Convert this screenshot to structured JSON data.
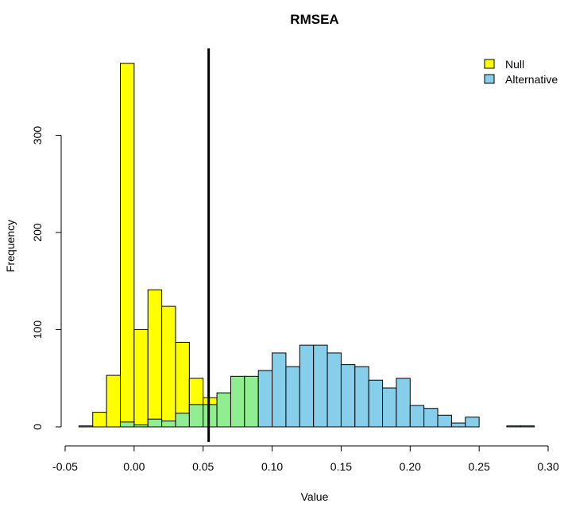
{
  "chart_data": {
    "type": "bar",
    "title": "RMSEA",
    "xlabel": "Value",
    "ylabel": "Frequency",
    "xlim": [
      -0.05,
      0.3
    ],
    "ylim": [
      0,
      380
    ],
    "x_ticks": [
      "-0.05",
      "0.00",
      "0.05",
      "0.10",
      "0.15",
      "0.20",
      "0.25",
      "0.30"
    ],
    "x_tick_values": [
      -0.05,
      0.0,
      0.05,
      0.1,
      0.15,
      0.2,
      0.25,
      0.3
    ],
    "y_ticks": [
      "0",
      "100",
      "200",
      "300"
    ],
    "y_tick_values": [
      0,
      100,
      200,
      300
    ],
    "bin_width": 0.01,
    "vline": 0.054,
    "legend_position": "top-right",
    "overlap_color": "#90ee90",
    "series": [
      {
        "name": "Null",
        "color": "#ffff00",
        "bins": [
          {
            "x0": -0.04,
            "v": 1
          },
          {
            "x0": -0.03,
            "v": 15
          },
          {
            "x0": -0.02,
            "v": 53
          },
          {
            "x0": -0.01,
            "v": 374
          },
          {
            "x0": 0.0,
            "v": 100
          },
          {
            "x0": 0.01,
            "v": 141
          },
          {
            "x0": 0.02,
            "v": 124
          },
          {
            "x0": 0.03,
            "v": 87
          },
          {
            "x0": 0.04,
            "v": 50
          },
          {
            "x0": 0.05,
            "v": 30
          },
          {
            "x0": 0.06,
            "v": 15
          },
          {
            "x0": 0.07,
            "v": 4
          },
          {
            "x0": 0.08,
            "v": 2
          }
        ]
      },
      {
        "name": "Alternative",
        "color": "#87ceeb",
        "bins": [
          {
            "x0": -0.01,
            "v": 5
          },
          {
            "x0": 0.0,
            "v": 2
          },
          {
            "x0": 0.01,
            "v": 8
          },
          {
            "x0": 0.02,
            "v": 6
          },
          {
            "x0": 0.03,
            "v": 14
          },
          {
            "x0": 0.04,
            "v": 23
          },
          {
            "x0": 0.05,
            "v": 23
          },
          {
            "x0": 0.06,
            "v": 35
          },
          {
            "x0": 0.07,
            "v": 52
          },
          {
            "x0": 0.08,
            "v": 52
          },
          {
            "x0": 0.09,
            "v": 58
          },
          {
            "x0": 0.1,
            "v": 76
          },
          {
            "x0": 0.11,
            "v": 62
          },
          {
            "x0": 0.12,
            "v": 84
          },
          {
            "x0": 0.13,
            "v": 84
          },
          {
            "x0": 0.14,
            "v": 76
          },
          {
            "x0": 0.15,
            "v": 64
          },
          {
            "x0": 0.16,
            "v": 62
          },
          {
            "x0": 0.17,
            "v": 48
          },
          {
            "x0": 0.18,
            "v": 40
          },
          {
            "x0": 0.19,
            "v": 50
          },
          {
            "x0": 0.2,
            "v": 22
          },
          {
            "x0": 0.21,
            "v": 19
          },
          {
            "x0": 0.22,
            "v": 12
          },
          {
            "x0": 0.23,
            "v": 4
          },
          {
            "x0": 0.24,
            "v": 10
          },
          {
            "x0": 0.25,
            "v": 0
          },
          {
            "x0": 0.26,
            "v": 0
          },
          {
            "x0": 0.27,
            "v": 1
          },
          {
            "x0": 0.28,
            "v": 1
          }
        ]
      }
    ]
  }
}
